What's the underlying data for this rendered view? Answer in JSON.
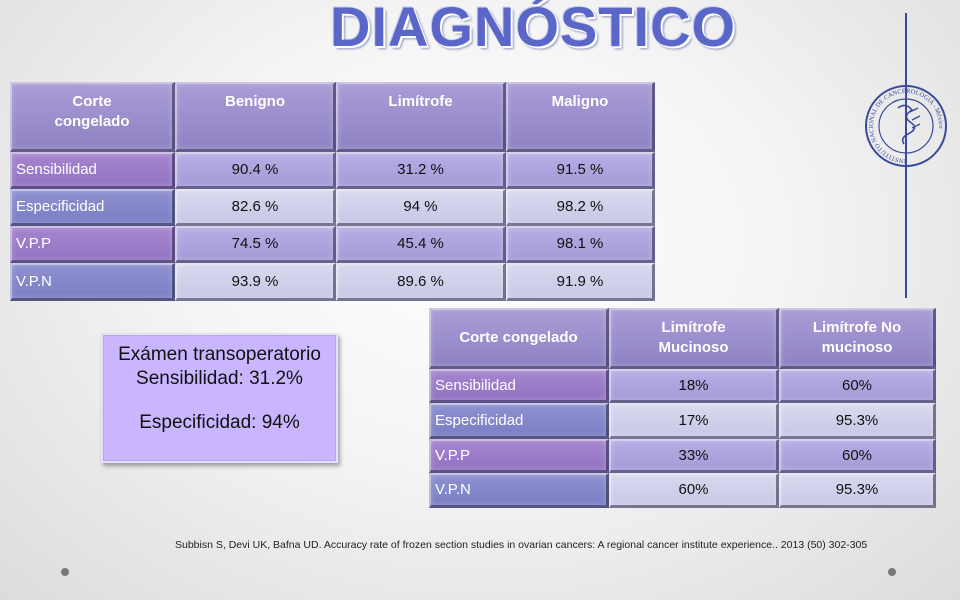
{
  "slide": {
    "title": "DIAGNÓSTICO",
    "callout": {
      "line1": "Exámen transoperatorio",
      "line2": "Sensibilidad:  31.2%",
      "line3": "Especificidad: 94%"
    },
    "citation": "Subbisn S, Devi UK, Bafna UD. Accuracy rate of frozen section studies in ovarian cancers: A regional cancer institute experience.. 2013 (50) 302-305",
    "logo": {
      "icon": "institute-seal-icon",
      "text": "INSTITUTO NACIONAL DE CANCEROLOGIA - México"
    },
    "colors": {
      "title": "#5a67c8",
      "header": "#9a8dcc",
      "label": "#9c7ccb",
      "label_alt": "#8486ca",
      "value": "#ada4de",
      "value_alt": "#d2d1ec",
      "callout": "#c9b6ff"
    }
  },
  "table1": {
    "headers": [
      "Corte congelado",
      "Benigno",
      "Limítrofe",
      "Maligno"
    ],
    "rows": [
      {
        "label": "Sensibilidad",
        "values": [
          "90.4 %",
          "31.2 %",
          "91.5 %"
        ]
      },
      {
        "label": "Especificidad",
        "values": [
          "82.6 %",
          "94 %",
          "98.2 %"
        ]
      },
      {
        "label": "V.P.P",
        "values": [
          "74.5 %",
          "45.4 %",
          "98.1 %"
        ]
      },
      {
        "label": "V.P.N",
        "values": [
          "93.9 %",
          "89.6 %",
          "91.9 %"
        ]
      }
    ]
  },
  "table2": {
    "headers": [
      "Corte congelado",
      "Limítrofe Mucinoso",
      "Limítrofe No mucinoso"
    ],
    "rows": [
      {
        "label": "Sensibilidad",
        "values": [
          "18%",
          "60%"
        ]
      },
      {
        "label": "Especificidad",
        "values": [
          "17%",
          "95.3%"
        ]
      },
      {
        "label": "V.P.P",
        "values": [
          "33%",
          "60%"
        ]
      },
      {
        "label": "V.P.N",
        "values": [
          "60%",
          "95.3%"
        ]
      }
    ]
  }
}
